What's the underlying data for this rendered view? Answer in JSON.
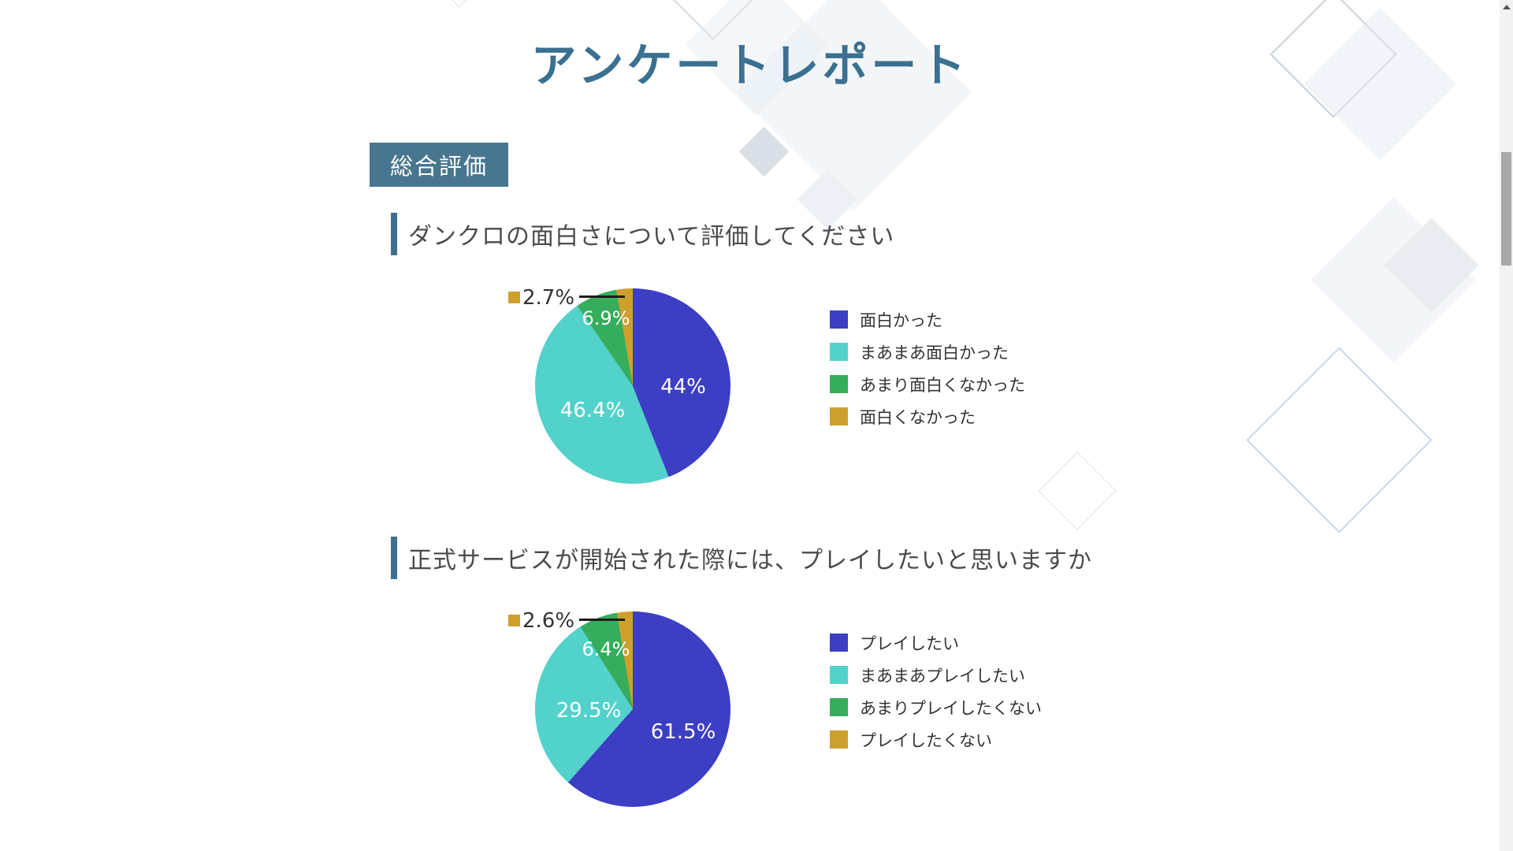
{
  "page": {
    "title": "アンケートレポート",
    "section_badge": "総合評価"
  },
  "theme": {
    "accent_teal": "#48768f",
    "title_color": "#3a7090",
    "heading_text_color": "#4b4b4b"
  },
  "chart_data": [
    {
      "type": "pie",
      "title": "ダンクロの面白さについて評価してください",
      "labels": [
        "面白かった",
        "まあまあ面白かった",
        "あまり面白くなかった",
        "面白くなかった"
      ],
      "values": [
        44,
        46.4,
        6.9,
        2.7
      ],
      "slice_labels": [
        "44%",
        "46.4%",
        "6.9%",
        "2.7%"
      ],
      "colors": [
        "#3c3ec4",
        "#52d2ca",
        "#35ad5c",
        "#cda02d"
      ],
      "start_angle_deg": 0,
      "direction": "clockwise",
      "legend_position": "right"
    },
    {
      "type": "pie",
      "title": "正式サービスが開始された際には、プレイしたいと思いますか",
      "labels": [
        "プレイしたい",
        "まあまあプレイしたい",
        "あまりプレイしたくない",
        "プレイしたくない"
      ],
      "values": [
        61.5,
        29.5,
        6.4,
        2.6
      ],
      "slice_labels": [
        "61.5%",
        "29.5%",
        "6.4%",
        "2.6%"
      ],
      "colors": [
        "#3c3ec4",
        "#52d2ca",
        "#35ad5c",
        "#cda02d"
      ],
      "start_angle_deg": 0,
      "direction": "clockwise",
      "legend_position": "right"
    }
  ]
}
